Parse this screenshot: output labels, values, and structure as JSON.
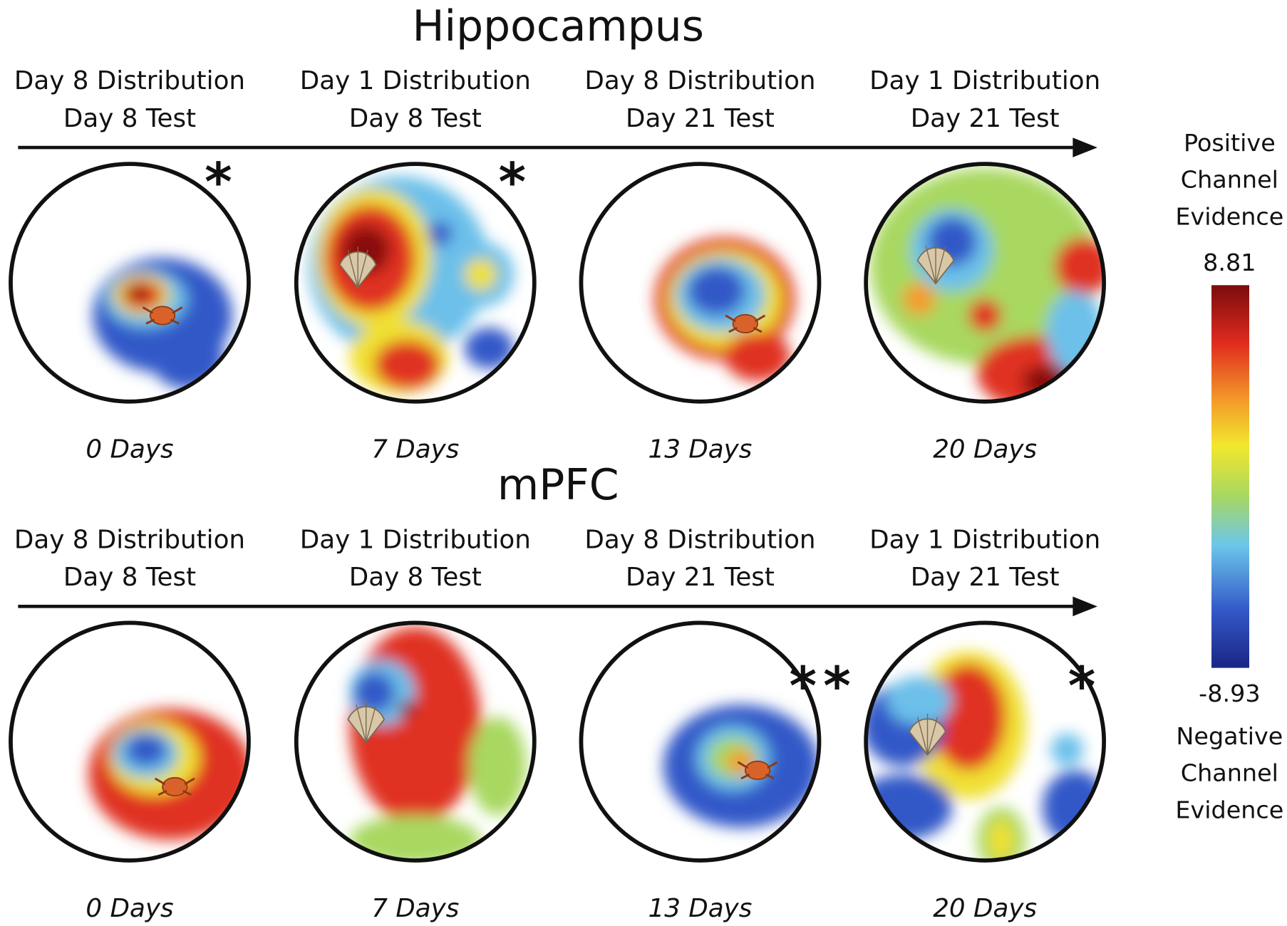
{
  "panels": [
    {
      "title": "Hippocampus",
      "conditions": [
        {
          "distribution": "Day 8 Distribution",
          "test": "Day 8 Test",
          "delay": "0 Days",
          "significance": "*"
        },
        {
          "distribution": "Day 1 Distribution",
          "test": "Day 8 Test",
          "delay": "7 Days",
          "significance": "*"
        },
        {
          "distribution": "Day 8 Distribution",
          "test": "Day 21 Test",
          "delay": "13 Days"
        },
        {
          "distribution": "Day 1 Distribution",
          "test": "Day 21 Test",
          "delay": "20 Days"
        }
      ]
    },
    {
      "title": "mPFC",
      "conditions": [
        {
          "distribution": "Day 8 Distribution",
          "test": "Day 8 Test",
          "delay": "0 Days"
        },
        {
          "distribution": "Day 1 Distribution",
          "test": "Day 8 Test",
          "delay": "7 Days"
        },
        {
          "distribution": "Day 8 Distribution",
          "test": "Day 21 Test",
          "delay": "13 Days",
          "significance": "**"
        },
        {
          "distribution": "Day 1 Distribution",
          "test": "Day 21 Test",
          "delay": "20 Days",
          "significance": "*"
        }
      ]
    }
  ],
  "colorbar": {
    "top_label": [
      "Positive",
      "Channel",
      "Evidence"
    ],
    "max": 8.81,
    "min": -8.93,
    "bottom_label": [
      "Negative",
      "Channel",
      "Evidence"
    ]
  }
}
